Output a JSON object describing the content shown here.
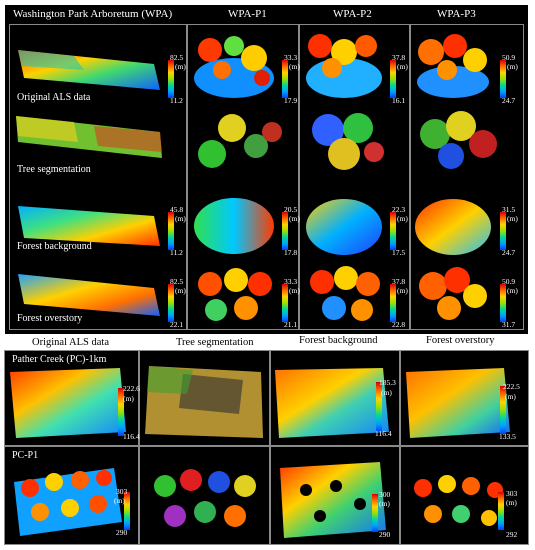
{
  "top_headers": [
    "Washington Park Arboretum (WPA)",
    "WPA-P1",
    "WPA-P2",
    "WPA-P3"
  ],
  "top_rows": [
    "Original ALS data",
    "Tree segmentation",
    "Forest background",
    "Forest overstory"
  ],
  "top_colorbars": {
    "r0": [
      {
        "max": "82.5",
        "unit": "(m)",
        "min": "11.2"
      },
      {
        "max": "33.3",
        "unit": "(m)",
        "min": "17.9"
      },
      {
        "max": "37.8",
        "unit": "(m)",
        "min": "16.1"
      },
      {
        "max": "50.9",
        "unit": "(m)",
        "min": "24.7"
      }
    ],
    "r2": [
      {
        "max": "45.8",
        "unit": "(m)",
        "min": "11.2"
      },
      {
        "max": "20.5",
        "unit": "(m)",
        "min": "17.8"
      },
      {
        "max": "22.3",
        "unit": "(m)",
        "min": "17.5"
      },
      {
        "max": "31.5",
        "unit": "(m)",
        "min": "24.7"
      }
    ],
    "r3": [
      {
        "max": "82.5",
        "unit": "(m)",
        "min": "22.1"
      },
      {
        "max": "33.3",
        "unit": "(m)",
        "min": "21.1"
      },
      {
        "max": "37.8",
        "unit": "(m)",
        "min": "22.8"
      },
      {
        "max": "50.9",
        "unit": "(m)",
        "min": "31.7"
      }
    ]
  },
  "bottom_headers": [
    "Original ALS data",
    "Tree segmentation",
    "Forest background",
    "Forest overstory"
  ],
  "bottom_rows": [
    "Pather Creek (PC)-1km",
    "PC-P1"
  ],
  "bottom_colorbars": {
    "r0": [
      {
        "max": "222.6",
        "unit": "(m)",
        "min": "116.4"
      },
      {
        "max": "185.3",
        "unit": "(m)",
        "min": "116.4"
      },
      {
        "max": "222.5",
        "unit": "(m)",
        "min": "133.5"
      }
    ],
    "r1": [
      {
        "max": "303",
        "unit": "(m)",
        "min": "290"
      },
      {
        "max": "300",
        "unit": "(m)",
        "min": "290"
      },
      {
        "max": "303",
        "unit": "(m)",
        "min": "292"
      }
    ]
  }
}
